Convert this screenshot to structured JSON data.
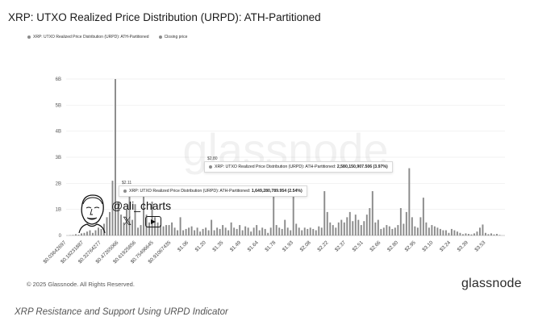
{
  "title": "XRP: UTXO Realized Price Distribution (URPD): ATH-Partitioned",
  "legend": [
    {
      "label": "XRP: UTXO Realized Price Distribution (URPD): ATH-Partitioned",
      "color": "#8b8b8b"
    },
    {
      "label": "Closing price",
      "color": "#8b8b8b"
    }
  ],
  "watermark": "glassnode",
  "tooltip1": {
    "price": "$2.11",
    "label": "XRP: UTXO Realized Price Distribution (URPD): ATH-Partitioned:",
    "value": "1,649,280,789.954 (2.54%)"
  },
  "tooltip2": {
    "price": "$2.80",
    "label": "XRP: UTXO Realized Price Distribution (URPD): ATH-Partitioned:",
    "value": "2,580,150,907.506 (3.97%)"
  },
  "overlay": {
    "handle": "@ali_charts",
    "x_icon": "x-logo-icon",
    "youtube_icon": "youtube-logo-icon",
    "avatar_icon": "avatar-face-icon"
  },
  "footer": {
    "copyright": "© 2025 Glassnode. All Rights Reserved.",
    "brand": "glassnode"
  },
  "caption": "XRP Resistance and Support Using URPD Indicator",
  "chart_data": {
    "type": "bar",
    "series": [
      {
        "name": "XRP: UTXO Realized Price Distribution (URPD): ATH-Partitioned",
        "color": "#8b8b8b"
      }
    ],
    "yticks": [
      "0",
      "1B",
      "2B",
      "3B",
      "4B",
      "5B",
      "6B"
    ],
    "ylim": [
      0,
      6000000000
    ],
    "xticks": [
      "$0.03642697",
      "$0.18231887",
      "$0.32764277",
      "$0.47265066",
      "$0.61925856",
      "$0.75496645",
      "$0.91067435",
      "$1.06",
      "$1.20",
      "$1.35",
      "$1.49",
      "$1.64",
      "$1.78",
      "$1.93",
      "$2.08",
      "$2.22",
      "$2.37",
      "$2.51",
      "$2.66",
      "$2.80",
      "$2.95",
      "$3.10",
      "$3.24",
      "$3.39",
      "$3.53"
    ],
    "values": [
      0.01,
      0.02,
      0.05,
      0.03,
      0.08,
      0.1,
      0.15,
      0.2,
      0.1,
      0.2,
      0.3,
      0.25,
      0.45,
      0.7,
      0.9,
      2.1,
      6.0,
      1.3,
      0.8,
      0.5,
      1.0,
      1.8,
      0.6,
      1.2,
      0.3,
      0.4,
      1.5,
      0.8,
      0.5,
      1.3,
      0.7,
      0.5,
      0.4,
      0.35,
      0.4,
      0.4,
      0.5,
      0.3,
      0.2,
      0.7,
      0.2,
      0.25,
      0.3,
      0.35,
      0.2,
      0.3,
      0.15,
      0.25,
      0.3,
      0.2,
      0.6,
      0.2,
      0.3,
      0.25,
      0.4,
      0.3,
      0.2,
      0.5,
      0.3,
      0.25,
      0.4,
      0.2,
      0.35,
      0.3,
      0.15,
      0.3,
      0.4,
      0.2,
      0.3,
      0.25,
      0.1,
      0.3,
      1.65,
      0.4,
      0.3,
      0.25,
      0.6,
      0.3,
      0.2,
      1.6,
      0.45,
      0.3,
      0.2,
      0.3,
      0.25,
      0.3,
      0.25,
      0.2,
      0.35,
      0.3,
      1.7,
      0.9,
      0.5,
      0.4,
      0.3,
      0.5,
      0.6,
      0.5,
      0.7,
      0.9,
      0.55,
      0.8,
      0.6,
      0.4,
      0.55,
      0.8,
      1.05,
      1.7,
      0.5,
      0.6,
      0.25,
      0.3,
      0.4,
      0.35,
      0.25,
      0.3,
      0.4,
      1.05,
      0.45,
      0.9,
      2.58,
      0.7,
      0.35,
      0.3,
      0.7,
      1.45,
      0.5,
      0.3,
      0.4,
      0.35,
      0.3,
      0.25,
      0.2,
      0.2,
      0.1,
      0.25,
      0.2,
      0.15,
      0.1,
      0.05,
      0.08,
      0.06,
      0.04,
      0.08,
      0.15,
      0.3,
      0.42,
      0.1,
      0.05,
      0.08,
      0.04,
      0.06,
      0.02
    ]
  }
}
